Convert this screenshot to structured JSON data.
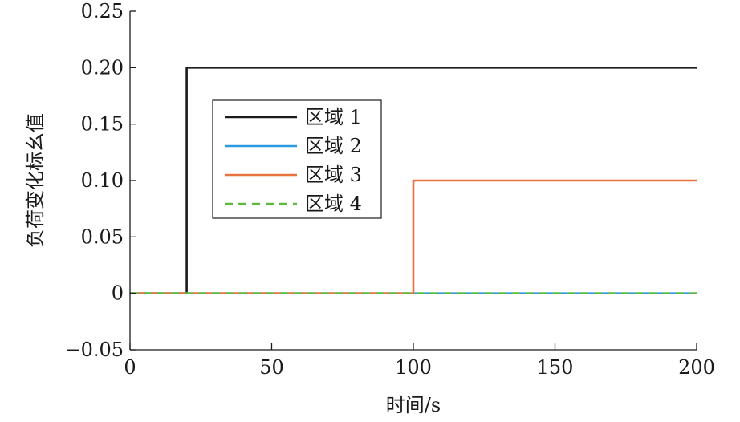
{
  "chart_data": {
    "type": "line",
    "title": "",
    "xlabel": "时间/s",
    "ylabel": "负荷变化标幺值",
    "xlim": [
      0,
      200
    ],
    "ylim": [
      -0.05,
      0.25
    ],
    "xticks": [
      "0",
      "50",
      "100",
      "150",
      "200"
    ],
    "yticks": [
      "0.25",
      "0.20",
      "0.15",
      "0.10",
      "0.05",
      "0",
      "−0.05"
    ],
    "legend_position": "upper-left",
    "grid": false,
    "series": [
      {
        "name": "区域 1",
        "color": "#1a1a1a",
        "dash": "solid",
        "step_x": [
          0,
          20,
          20,
          200
        ],
        "step_y": [
          0,
          0,
          0.2,
          0.2
        ]
      },
      {
        "name": "区域 2",
        "color": "#2b9be0",
        "dash": "solid",
        "step_x": [
          0,
          200
        ],
        "step_y": [
          0,
          0
        ]
      },
      {
        "name": "区域 3",
        "color": "#e8733e",
        "dash": "solid",
        "step_x": [
          0,
          100,
          100,
          200
        ],
        "step_y": [
          0,
          0,
          0.1,
          0.1
        ]
      },
      {
        "name": "区域 4",
        "color": "#5dba3c",
        "dash": "dashed",
        "step_x": [
          0,
          200
        ],
        "step_y": [
          0,
          0
        ]
      }
    ]
  }
}
